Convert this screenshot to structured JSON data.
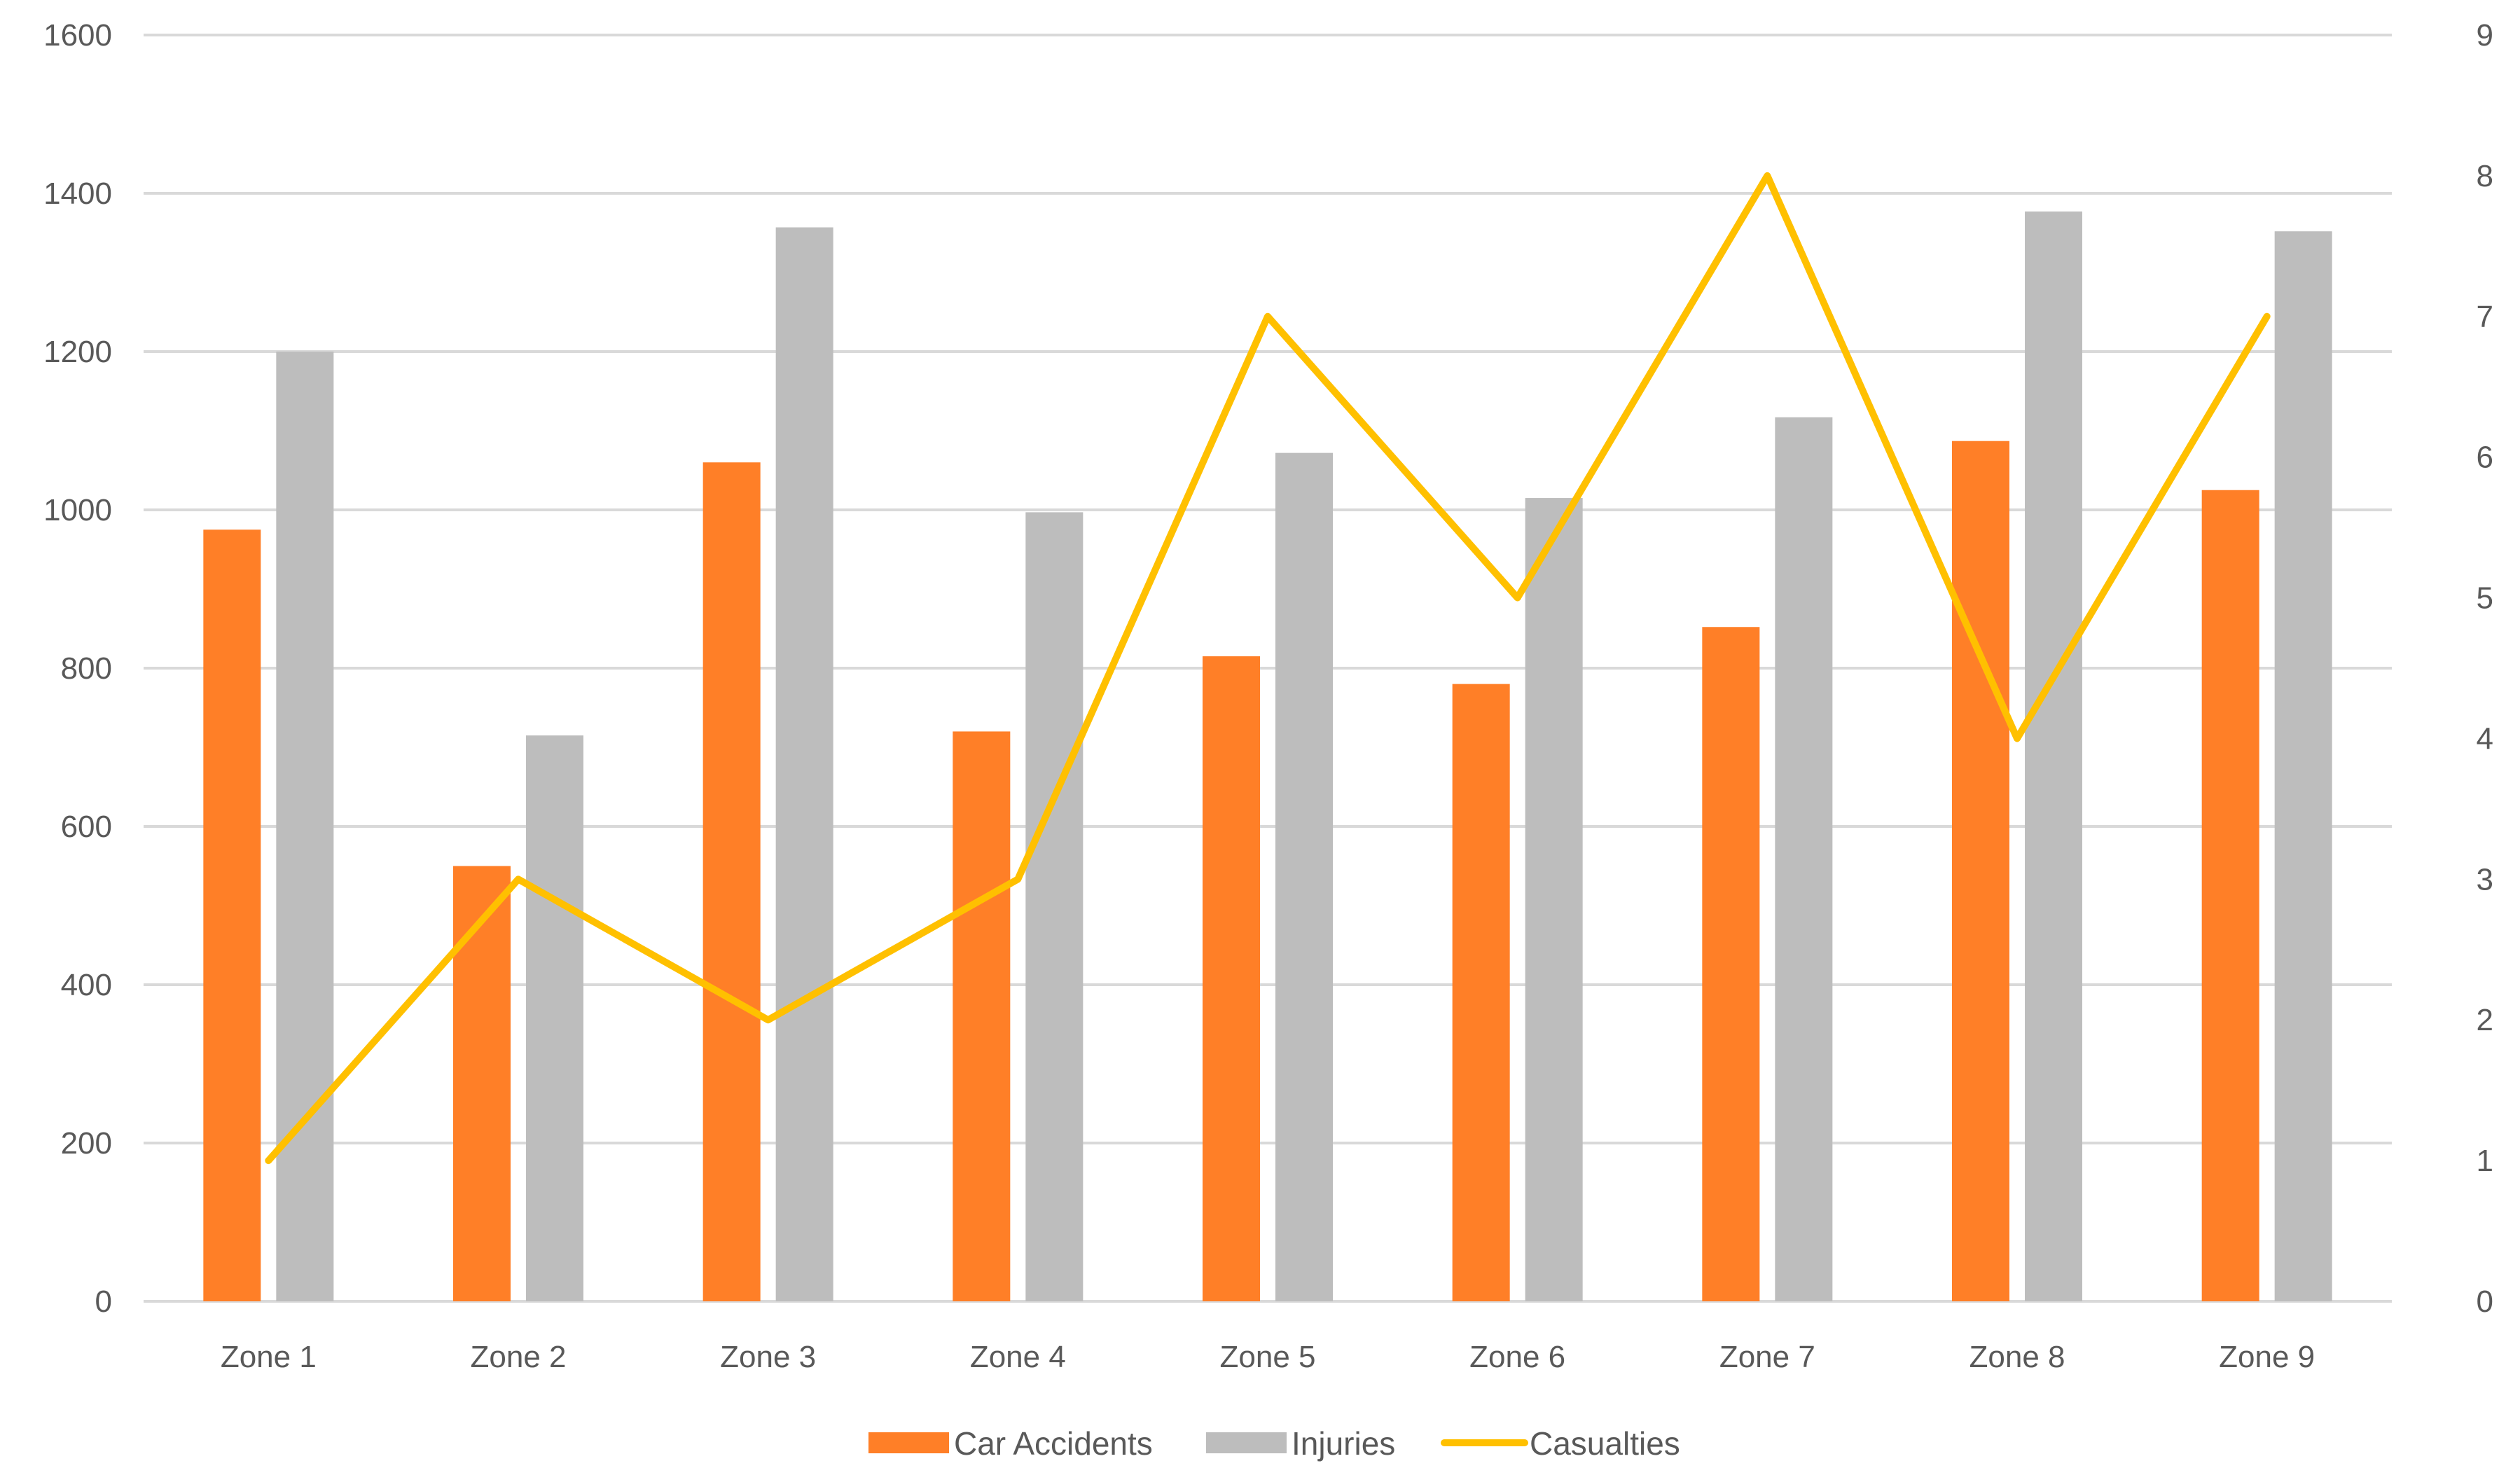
{
  "chart_data": {
    "type": "bar",
    "categories": [
      "Zone 1",
      "Zone 2",
      "Zone 3",
      "Zone 4",
      "Zone 5",
      "Zone 6",
      "Zone 7",
      "Zone 8",
      "Zone 9"
    ],
    "series": [
      {
        "name": "Car Accidents",
        "type": "bar",
        "axis": "left",
        "color": "#FF7F27",
        "values": [
          975,
          550,
          1060,
          720,
          815,
          780,
          852,
          1087,
          1025
        ]
      },
      {
        "name": "Injuries",
        "type": "bar",
        "axis": "left",
        "color": "#BDBDBD",
        "values": [
          1200,
          715,
          1357,
          997,
          1072,
          1015,
          1117,
          1377,
          1352
        ]
      },
      {
        "name": "Casualties",
        "type": "line",
        "axis": "right",
        "color": "#FFC000",
        "values": [
          1,
          3,
          2,
          3,
          7,
          5,
          8,
          4,
          7
        ]
      }
    ],
    "y_left": {
      "min": 0,
      "max": 1600,
      "step": 200,
      "ticks": [
        "0",
        "200",
        "400",
        "600",
        "800",
        "1000",
        "1200",
        "1400",
        "1600"
      ]
    },
    "y_right": {
      "min": 0,
      "max": 9,
      "step": 1,
      "ticks": [
        "0",
        "1",
        "2",
        "3",
        "4",
        "5",
        "6",
        "7",
        "8",
        "9"
      ]
    },
    "grid": true,
    "legend_position": "bottom",
    "title": "",
    "xlabel": "",
    "ylabel": ""
  }
}
